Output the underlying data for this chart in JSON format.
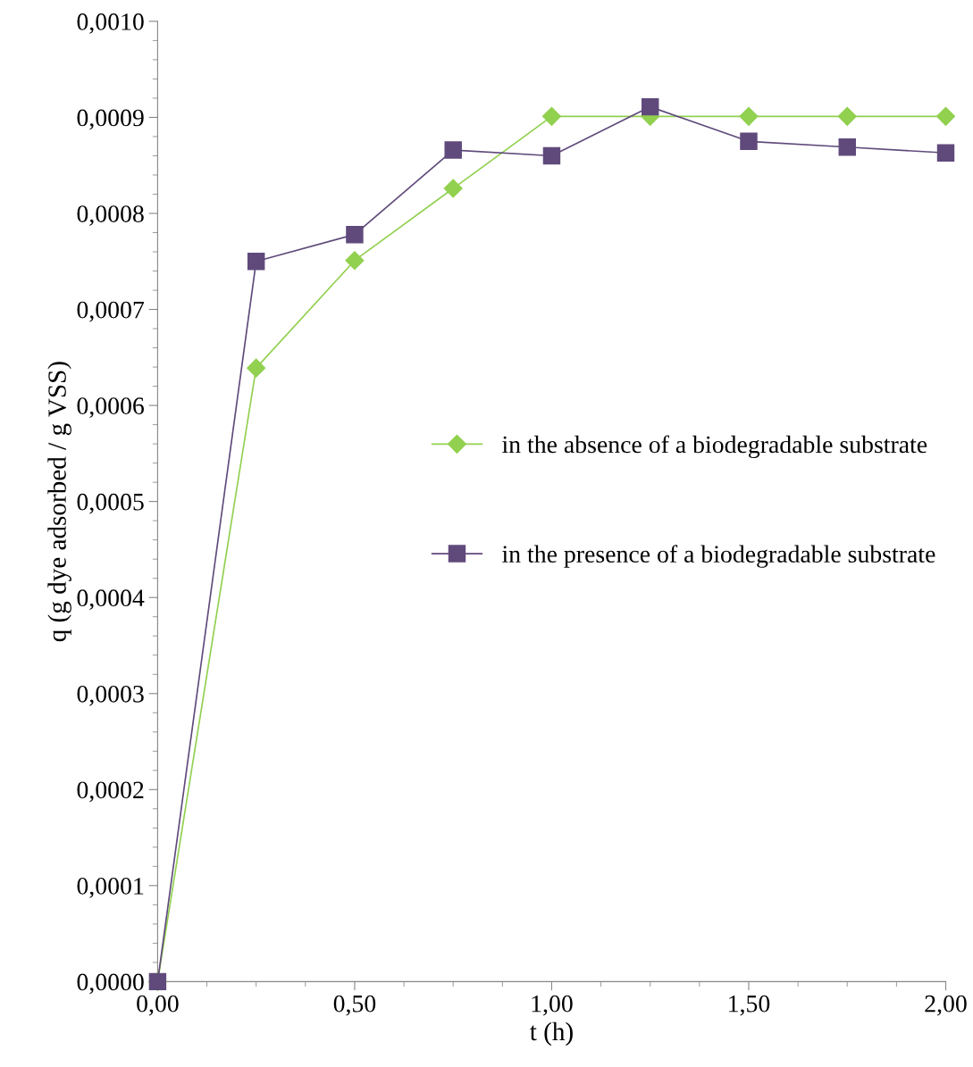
{
  "chart_data": {
    "type": "line",
    "xlabel": "t (h)",
    "ylabel": "q (g dye adsorbed / g VSS)",
    "x": [
      0,
      0.25,
      0.5,
      0.75,
      1.0,
      1.25,
      1.5,
      1.75,
      2.0
    ],
    "series": [
      {
        "name": "in the absence of a biodegradable substrate",
        "color": "#92d050",
        "marker": "diamond",
        "values": [
          0,
          0.000639,
          0.000751,
          0.000826,
          0.000901,
          0.000901,
          0.000901,
          0.000901,
          0.000901
        ]
      },
      {
        "name": "in the presence of a biodegradable substrate",
        "color": "#604a7b",
        "marker": "square",
        "values": [
          0,
          0.00075,
          0.000778,
          0.000866,
          0.00086,
          0.000911,
          0.000875,
          0.000869,
          0.000863
        ]
      }
    ],
    "xlim": [
      0,
      2.0
    ],
    "xticks": [
      {
        "value": 0,
        "label": "0,00"
      },
      {
        "value": 0.5,
        "label": "0,50"
      },
      {
        "value": 1.0,
        "label": "1,00"
      },
      {
        "value": 1.5,
        "label": "1,50"
      },
      {
        "value": 2.0,
        "label": "2,00"
      }
    ],
    "ylim": [
      0,
      0.001
    ],
    "yticks": [
      {
        "value": 0,
        "label": "0,0000"
      },
      {
        "value": 0.0001,
        "label": "0,0001"
      },
      {
        "value": 0.0002,
        "label": "0,0002"
      },
      {
        "value": 0.0003,
        "label": "0,0003"
      },
      {
        "value": 0.0004,
        "label": "0,0004"
      },
      {
        "value": 0.0005,
        "label": "0,0005"
      },
      {
        "value": 0.0006,
        "label": "0,0006"
      },
      {
        "value": 0.0007,
        "label": "0,0007"
      },
      {
        "value": 0.0008,
        "label": "0,0008"
      },
      {
        "value": 0.0009,
        "label": "0,0009"
      },
      {
        "value": 0.001,
        "label": "0,0010"
      }
    ],
    "grid": false,
    "legend": "center right",
    "line_style": "solid"
  }
}
